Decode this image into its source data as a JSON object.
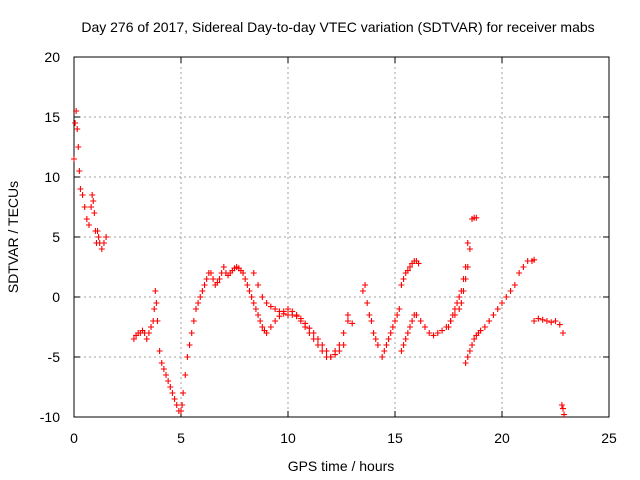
{
  "chart_data": {
    "type": "scatter",
    "title": "Day 276 of 2017, Sidereal Day-to-day VTEC variation (SDTVAR) for receiver mabs",
    "xlabel": "GPS time / hours",
    "ylabel": "SDTVAR / TECUs",
    "xlim": [
      0,
      25
    ],
    "ylim": [
      -10,
      20
    ],
    "xticks": [
      "0",
      "5",
      "10",
      "15",
      "20",
      "25"
    ],
    "yticks": [
      "-10",
      "-5",
      "0",
      "5",
      "10",
      "15",
      "20"
    ],
    "grid": true,
    "marker": "+",
    "color": "#ff0000",
    "series": [
      {
        "name": "SDTVAR",
        "x": [
          0.0,
          0.05,
          0.1,
          0.15,
          0.2,
          0.25,
          0.3,
          0.4,
          0.5,
          0.6,
          0.7,
          0.8,
          0.85,
          0.9,
          0.95,
          1.0,
          1.05,
          1.1,
          1.15,
          1.2,
          1.3,
          1.4,
          1.5,
          2.8,
          2.9,
          3.0,
          3.1,
          3.2,
          3.3,
          3.4,
          3.5,
          3.6,
          3.7,
          3.75,
          3.8,
          3.85,
          3.9,
          4.0,
          4.1,
          4.2,
          4.3,
          4.4,
          4.5,
          4.6,
          4.7,
          4.8,
          4.9,
          5.0,
          5.05,
          5.1,
          5.2,
          5.3,
          5.4,
          5.5,
          5.6,
          5.7,
          5.8,
          5.9,
          6.0,
          6.1,
          6.2,
          6.3,
          6.4,
          6.5,
          6.6,
          6.7,
          6.8,
          6.9,
          7.0,
          7.1,
          7.2,
          7.3,
          7.4,
          7.5,
          7.6,
          7.7,
          7.8,
          7.9,
          8.0,
          8.1,
          8.2,
          8.3,
          8.4,
          8.5,
          8.6,
          8.7,
          8.8,
          8.9,
          9.0,
          9.2,
          9.4,
          9.6,
          9.8,
          10.0,
          10.2,
          10.4,
          10.6,
          10.8,
          11.0,
          11.2,
          11.4,
          11.6,
          11.8,
          12.0,
          12.2,
          12.4,
          12.6,
          12.8,
          8.4,
          8.6,
          8.8,
          9.0,
          9.2,
          9.4,
          9.6,
          9.8,
          10.0,
          10.2,
          10.4,
          10.6,
          10.8,
          11.0,
          11.2,
          11.4,
          11.6,
          11.8,
          12.0,
          12.2,
          12.4,
          12.6,
          12.8,
          13.0,
          13.5,
          13.6,
          13.7,
          13.8,
          13.9,
          14.0,
          14.1,
          14.2,
          14.4,
          14.5,
          14.6,
          14.7,
          14.8,
          14.9,
          15.0,
          15.1,
          15.2,
          15.3,
          15.4,
          15.5,
          15.6,
          15.7,
          15.8,
          15.9,
          16.0,
          16.1,
          15.3,
          15.4,
          15.5,
          15.6,
          15.7,
          15.8,
          15.9,
          16.0,
          16.2,
          16.4,
          16.6,
          16.8,
          17.0,
          17.2,
          17.4,
          17.6,
          17.8,
          18.0,
          18.1,
          18.2,
          18.3,
          18.4,
          18.5,
          17.5,
          17.6,
          17.7,
          17.8,
          17.9,
          18.0,
          18.1,
          18.2,
          18.3,
          18.4,
          18.6,
          18.7,
          18.8,
          18.3,
          18.4,
          18.5,
          18.6,
          18.7,
          18.8,
          18.9,
          19.0,
          19.2,
          19.4,
          19.6,
          19.8,
          20.0,
          20.2,
          20.4,
          20.6,
          20.8,
          21.0,
          21.2,
          21.4,
          21.5,
          21.5,
          21.7,
          21.9,
          22.1,
          22.3,
          22.5,
          22.7,
          22.85,
          22.8,
          22.85,
          22.9
        ],
        "y": [
          11.5,
          14.5,
          15.5,
          14.0,
          12.5,
          10.5,
          9.0,
          8.5,
          7.5,
          6.5,
          6.0,
          7.5,
          8.5,
          8.0,
          7.0,
          5.5,
          4.5,
          5.5,
          5.0,
          4.5,
          4.0,
          4.5,
          5.0,
          -3.5,
          -3.2,
          -3.0,
          -3.0,
          -2.8,
          -3.0,
          -3.5,
          -3.0,
          -2.5,
          -2.0,
          -1.0,
          0.5,
          -0.5,
          -2.0,
          -4.5,
          -5.5,
          -6.0,
          -6.5,
          -7.0,
          -7.5,
          -8.0,
          -8.5,
          -9.0,
          -9.5,
          -9.5,
          -9.0,
          -8.0,
          -6.5,
          -5.0,
          -4.0,
          -3.0,
          -2.0,
          -1.0,
          -0.5,
          0.0,
          0.5,
          1.0,
          1.5,
          2.0,
          2.0,
          1.5,
          1.0,
          1.2,
          1.5,
          2.0,
          2.5,
          2.0,
          1.8,
          2.0,
          2.2,
          2.4,
          2.5,
          2.4,
          2.2,
          2.0,
          1.5,
          1.0,
          0.5,
          0.0,
          -0.5,
          -1.0,
          -1.5,
          -2.0,
          -2.5,
          -2.8,
          -3.0,
          -2.5,
          -2.0,
          -1.6,
          -1.2,
          -1.0,
          -1.2,
          -1.5,
          -2.0,
          -2.5,
          -3.0,
          -3.5,
          -4.0,
          -4.5,
          -5.0,
          -5.0,
          -4.5,
          -4.0,
          -3.0,
          -1.5,
          2.0,
          1.0,
          0.0,
          -0.5,
          -0.8,
          -1.0,
          -1.2,
          -1.4,
          -1.5,
          -1.5,
          -1.6,
          -1.8,
          -2.2,
          -2.6,
          -3.0,
          -3.5,
          -4.0,
          -4.5,
          -5.0,
          -4.8,
          -4.5,
          -4.0,
          -2.0,
          -2.2,
          0.5,
          1.0,
          -0.5,
          -1.5,
          -2.0,
          -3.0,
          -3.5,
          -4.0,
          -5.0,
          -4.5,
          -4.0,
          -3.5,
          -3.0,
          -2.5,
          -2.0,
          -1.5,
          -1.0,
          1.0,
          1.5,
          2.0,
          2.2,
          2.5,
          2.8,
          3.0,
          3.0,
          2.8,
          -4.5,
          -4.0,
          -3.5,
          -3.0,
          -2.5,
          -2.0,
          -1.5,
          -1.5,
          -2.0,
          -2.5,
          -3.0,
          -3.2,
          -3.0,
          -2.8,
          -2.5,
          -2.0,
          -1.5,
          -1.0,
          -0.5,
          0.5,
          1.5,
          2.5,
          4.0,
          -2.5,
          -2.0,
          -1.5,
          -1.0,
          -0.5,
          0.0,
          0.5,
          1.5,
          2.5,
          4.5,
          6.5,
          6.6,
          6.6,
          -5.5,
          -5.0,
          -4.5,
          -4.0,
          -3.5,
          -3.2,
          -3.0,
          -2.8,
          -2.5,
          -2.0,
          -1.5,
          -1.0,
          -0.5,
          0.0,
          0.5,
          1.0,
          2.0,
          2.5,
          3.0,
          3.0,
          3.1,
          -2.0,
          -1.8,
          -1.9,
          -2.0,
          -2.1,
          -2.0,
          -2.3,
          -3.0,
          -9.0,
          -9.3,
          -9.8
        ]
      }
    ]
  }
}
